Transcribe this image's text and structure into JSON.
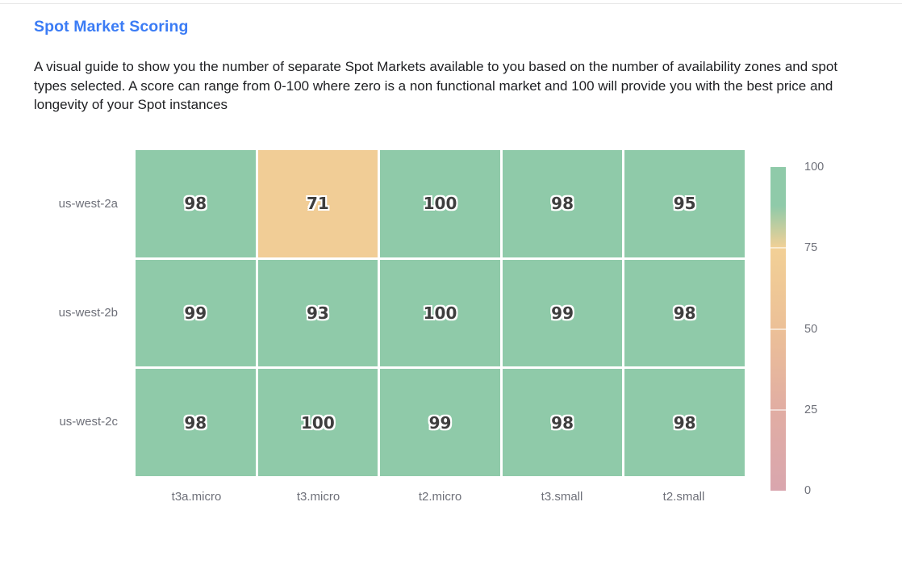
{
  "page": {
    "title": "Spot Market Scoring",
    "description": "A visual guide to show you the number of separate Spot Markets available to you based on the number of availability zones and spot types selected. A score can range from 0-100 where zero is a non functional market and 100 will provide you with the best price and longevity of your Spot instances"
  },
  "theme": {
    "title_color": "#3b7cf5",
    "body_text_color": "#202124",
    "axis_label_color": "#6e7079",
    "cell_label_color": "#3e3e3e",
    "divider_color": "#e8e8e8",
    "cell_gap_color": "#ffffff"
  },
  "chart_data": {
    "type": "heatmap",
    "title": "Spot Market Scoring",
    "x_categories": [
      "t3a.micro",
      "t3.micro",
      "t2.micro",
      "t3.small",
      "t2.small"
    ],
    "y_categories": [
      "us-west-2a",
      "us-west-2b",
      "us-west-2c"
    ],
    "rows": [
      {
        "zone": "us-west-2a",
        "values": [
          98,
          71,
          100,
          98,
          95
        ]
      },
      {
        "zone": "us-west-2b",
        "values": [
          99,
          93,
          100,
          99,
          98
        ]
      },
      {
        "zone": "us-west-2c",
        "values": [
          98,
          100,
          99,
          98,
          98
        ]
      }
    ],
    "value_range": [
      0,
      100
    ],
    "grid": "off",
    "legend_position": "right",
    "colorbar": {
      "ticks": [
        100,
        75,
        50,
        25,
        0
      ],
      "stops": [
        {
          "v": 0,
          "color": "#d9a6ae"
        },
        {
          "v": 25,
          "color": "#e1ada3"
        },
        {
          "v": 50,
          "color": "#ecc097"
        },
        {
          "v": 75,
          "color": "#f2d096"
        },
        {
          "v": 88,
          "color": "#8fcaa9"
        },
        {
          "v": 100,
          "color": "#8fcaa9"
        }
      ]
    }
  }
}
